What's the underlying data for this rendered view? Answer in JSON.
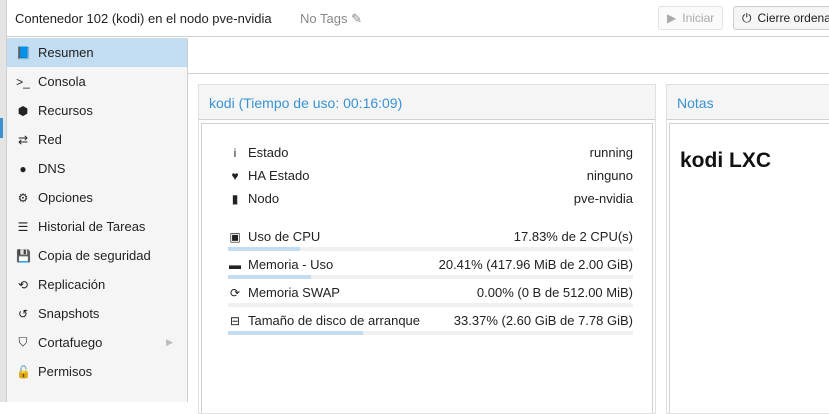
{
  "header": {
    "title": "Contenedor 102 (kodi) en el nodo pve-nvidia",
    "tags": "No Tags",
    "start_label": "Iniciar",
    "shutdown_label": "Cierre ordenado"
  },
  "sidebar": {
    "items": [
      {
        "label": "Resumen",
        "icon": "book-icon",
        "active": true
      },
      {
        "label": "Consola",
        "icon": "terminal-icon"
      },
      {
        "label": "Recursos",
        "icon": "cube-icon"
      },
      {
        "label": "Red",
        "icon": "exchange-icon"
      },
      {
        "label": "DNS",
        "icon": "globe-icon"
      },
      {
        "label": "Opciones",
        "icon": "gear-icon"
      },
      {
        "label": "Historial de Tareas",
        "icon": "list-icon"
      },
      {
        "label": "Copia de seguridad",
        "icon": "floppy-icon"
      },
      {
        "label": "Replicación",
        "icon": "retweet-icon"
      },
      {
        "label": "Snapshots",
        "icon": "history-icon"
      },
      {
        "label": "Cortafuego",
        "icon": "shield-icon",
        "submenu": true
      },
      {
        "label": "Permisos",
        "icon": "unlock-icon"
      }
    ]
  },
  "status": {
    "title": "kodi (Tiempo de uso: 00:16:09)",
    "info": [
      {
        "label": "Estado",
        "value": "running",
        "icon": "info-icon"
      },
      {
        "label": "HA Estado",
        "value": "ninguno",
        "icon": "heartbeat-icon"
      },
      {
        "label": "Nodo",
        "value": "pve-nvidia",
        "icon": "server-icon"
      }
    ],
    "usage": [
      {
        "label": "Uso de CPU",
        "value": "17.83% de 2 CPU(s)",
        "percent": 17.83,
        "icon": "cpu-icon"
      },
      {
        "label": "Memoria - Uso",
        "value": "20.41% (417.96 MiB de 2.00 GiB)",
        "percent": 20.41,
        "icon": "memory-icon"
      },
      {
        "label": "Memoria SWAP",
        "value": "0.00% (0 B de 512.00 MiB)",
        "percent": 0,
        "icon": "refresh-icon"
      },
      {
        "label": "Tamaño de disco de arranque",
        "value": "33.37% (2.60 GiB de 7.78 GiB)",
        "percent": 33.37,
        "icon": "hdd-icon"
      }
    ]
  },
  "notes": {
    "title": "Notas",
    "content": "kodi LXC"
  },
  "colors": {
    "accent": "#3892d4",
    "selected": "#c2ddf2"
  }
}
